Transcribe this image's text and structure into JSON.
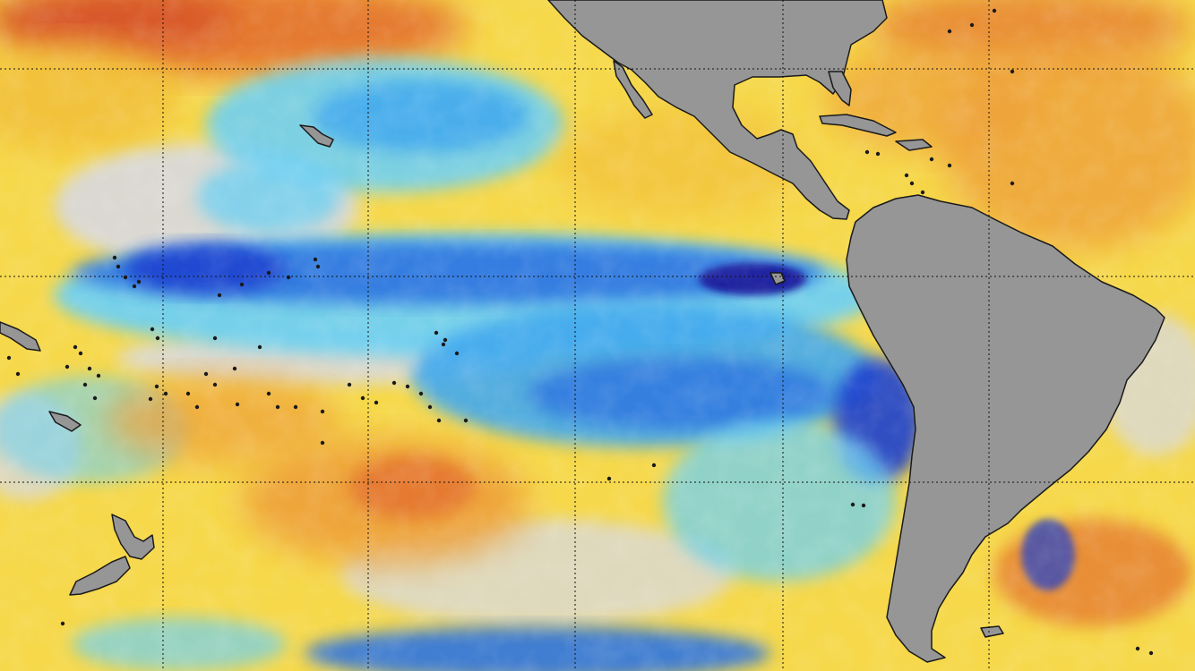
{
  "map": {
    "type": "sea-surface-temperature-anomaly",
    "region": "eastern-pacific-and-americas",
    "graticule": {
      "visible": true,
      "style": "dotted-black"
    },
    "colors": {
      "ocean_base": "#f6d84a",
      "warm_light": "#f2c03a",
      "warm_orange": "#eea03a",
      "warm_red": "#e3702f",
      "warm_deep": "#d24a25",
      "neutral": "#d9d9d9",
      "cool_light": "#6fd0f2",
      "cool_mid": "#43a9ee",
      "cool_blue": "#2f75e0",
      "cool_deep": "#1e3fcf",
      "cool_darkest": "#1d1f9b",
      "land": "#969696",
      "coast": "#1a1a1a",
      "grid": "#111111"
    }
  }
}
